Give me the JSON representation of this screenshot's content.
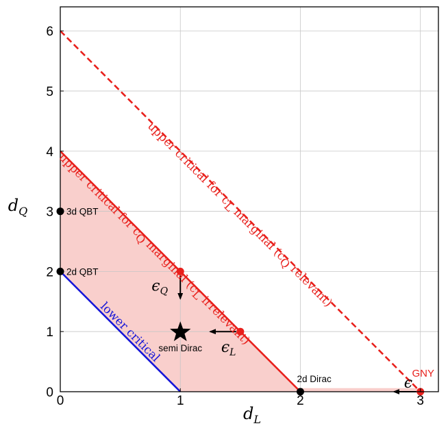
{
  "chart_data": {
    "type": "line",
    "xlabel": "d",
    "xlabel_sub": "L",
    "ylabel": "d",
    "ylabel_sub": "Q",
    "xlim": [
      0,
      3.15
    ],
    "ylim": [
      0,
      6.4
    ],
    "grid": true,
    "xticks": [
      {
        "value": 0,
        "label": "0"
      },
      {
        "value": 1,
        "label": "1"
      },
      {
        "value": 2,
        "label": "2"
      },
      {
        "value": 3,
        "label": "3"
      }
    ],
    "yticks": [
      {
        "value": 0,
        "label": "0"
      },
      {
        "value": 1,
        "label": "1"
      },
      {
        "value": 2,
        "label": "2"
      },
      {
        "value": 3,
        "label": "3"
      },
      {
        "value": 4,
        "label": "4"
      },
      {
        "value": 5,
        "label": "5"
      },
      {
        "value": 6,
        "label": "6"
      }
    ],
    "shaded_regions": [
      {
        "points": [
          [
            0,
            2
          ],
          [
            0,
            4
          ],
          [
            2,
            0
          ],
          [
            1,
            0
          ]
        ],
        "color": "#f9cfcc"
      },
      {
        "points": [
          [
            2,
            0
          ],
          [
            3,
            0
          ],
          [
            3,
            0.06
          ],
          [
            2,
            0.06
          ]
        ],
        "color": "#f9cfcc"
      }
    ],
    "lines": [
      {
        "id": "upper-q",
        "x": [
          0,
          2
        ],
        "y": [
          4,
          0
        ],
        "color": "#e8201c",
        "dash": false,
        "label": "upper critical for c",
        "label_sub": "Q",
        "label_tail": " marginal (c",
        "label_sub2": "L",
        "label_end": " irrelevant)"
      },
      {
        "id": "upper-l",
        "x": [
          0,
          3
        ],
        "y": [
          6,
          0
        ],
        "color": "#e8201c",
        "dash": true,
        "label": "upper critical for c",
        "label_sub": "L",
        "label_tail": " marginal (c",
        "label_sub2": "Q",
        "label_end": " relevant)"
      },
      {
        "id": "lower",
        "x": [
          0,
          1
        ],
        "y": [
          2,
          0
        ],
        "color": "#1515d8",
        "dash": false,
        "label": "lower critical"
      }
    ],
    "points": [
      {
        "id": "3d-qbt",
        "x": 0,
        "y": 3,
        "color": "#000000",
        "marker": "circle",
        "label": "3d QBT"
      },
      {
        "id": "2d-qbt",
        "x": 0,
        "y": 2,
        "color": "#000000",
        "marker": "circle",
        "label": "2d QBT"
      },
      {
        "id": "2d-dirac",
        "x": 2,
        "y": 0,
        "color": "#000000",
        "marker": "circle",
        "label": "2d Dirac"
      },
      {
        "id": "semi-dirac",
        "x": 1,
        "y": 1,
        "color": "#000000",
        "marker": "star",
        "label": "semi Dirac"
      },
      {
        "id": "red-q",
        "x": 1,
        "y": 2,
        "color": "#e8201c",
        "marker": "circle",
        "label": ""
      },
      {
        "id": "red-l",
        "x": 1.5,
        "y": 1,
        "color": "#e8201c",
        "marker": "circle",
        "label": ""
      },
      {
        "id": "gny",
        "x": 3,
        "y": 0,
        "color": "#e8201c",
        "marker": "circle",
        "label": "GNY"
      }
    ],
    "arrows": [
      {
        "id": "eps-q",
        "from": [
          1,
          2
        ],
        "to": [
          1,
          1.55
        ],
        "label": "ϵ",
        "label_sub": "Q"
      },
      {
        "id": "eps-l",
        "from": [
          1.5,
          1
        ],
        "to": [
          1.25,
          1
        ],
        "label": "ϵ",
        "label_sub": "L"
      },
      {
        "id": "eps",
        "from": [
          3,
          0
        ],
        "to": [
          2.78,
          0
        ],
        "label": "ϵ",
        "label_sub": ""
      }
    ]
  }
}
